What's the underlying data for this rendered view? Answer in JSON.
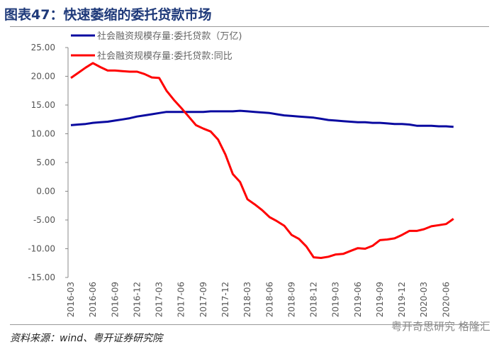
{
  "title": "图表47：快速萎缩的委托贷款市场",
  "source": "资料来源：wind、粤开证券研究院",
  "watermark": "粤开奇思研究 格隆汇",
  "chart_data": {
    "type": "line",
    "title": "图表47：快速萎缩的委托贷款市场",
    "xlabel": "",
    "ylabel": "",
    "ylim": [
      -15,
      25
    ],
    "yticks": [
      "25.00",
      "20.00",
      "15.00",
      "10.00",
      "5.00",
      "0.00",
      "-5.00",
      "-10.00",
      "-15.00"
    ],
    "ytick_values": [
      25,
      20,
      15,
      10,
      5,
      0,
      -5,
      -10,
      -15
    ],
    "xticks": [
      "2016-03",
      "2016-06",
      "2016-09",
      "2016-12",
      "2017-03",
      "2017-06",
      "2017-09",
      "2017-12",
      "2018-03",
      "2018-06",
      "2018-09",
      "2018-12",
      "2019-03",
      "2019-06",
      "2019-09",
      "2019-12",
      "2020-03",
      "2020-06"
    ],
    "legend_placement": "top-left",
    "x_start": "2016-03",
    "n_months": 53,
    "series": [
      {
        "name": "社会融资规模存量:委托贷款（万亿)",
        "color": "#0a0aa0",
        "values": [
          11.5,
          11.6,
          11.7,
          11.9,
          12.0,
          12.1,
          12.3,
          12.5,
          12.7,
          13.0,
          13.2,
          13.4,
          13.6,
          13.8,
          13.8,
          13.8,
          13.8,
          13.8,
          13.8,
          13.9,
          13.9,
          13.9,
          13.9,
          14.0,
          13.9,
          13.8,
          13.7,
          13.6,
          13.4,
          13.2,
          13.1,
          13.0,
          12.9,
          12.8,
          12.6,
          12.4,
          12.3,
          12.2,
          12.1,
          12.0,
          12.0,
          11.9,
          11.9,
          11.8,
          11.7,
          11.7,
          11.6,
          11.4,
          11.4,
          11.4,
          11.3,
          11.3,
          11.2
        ]
      },
      {
        "name": "社会融资规模存量:委托贷款:同比",
        "color": "#ff0000",
        "values": [
          19.7,
          20.6,
          21.5,
          22.3,
          21.6,
          21.0,
          21.0,
          20.9,
          20.8,
          20.8,
          20.4,
          19.8,
          19.7,
          17.5,
          15.9,
          14.5,
          13.0,
          11.5,
          10.9,
          10.4,
          9.0,
          6.4,
          3.0,
          1.6,
          -1.4,
          -2.3,
          -3.3,
          -4.5,
          -5.2,
          -6.0,
          -7.6,
          -8.3,
          -9.6,
          -11.5,
          -11.6,
          -11.4,
          -11.0,
          -10.9,
          -10.4,
          -9.9,
          -10.0,
          -9.5,
          -8.5,
          -8.4,
          -8.2,
          -7.6,
          -6.9,
          -6.9,
          -6.6,
          -6.1,
          -5.9,
          -5.7,
          -4.8
        ]
      }
    ]
  }
}
